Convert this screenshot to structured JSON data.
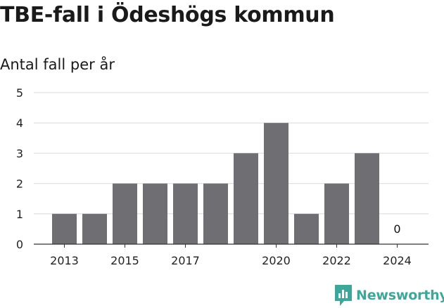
{
  "title": "TBE-fall i Ödeshögs kommun",
  "subtitle": "Antal fall per år",
  "brand": "Newsworthy",
  "colors": {
    "bar": "#6f6e73",
    "grid": "#d9d9d9",
    "axis": "#333333",
    "brand": "#3fa79a"
  },
  "chart_data": {
    "type": "bar",
    "categories": [
      "2013",
      "2014",
      "2015",
      "2016",
      "2017",
      "2018",
      "2019",
      "2020",
      "2021",
      "2022",
      "2023",
      "2024"
    ],
    "values": [
      1,
      1,
      2,
      2,
      2,
      2,
      3,
      4,
      1,
      2,
      3,
      0
    ],
    "x_tick_labels": [
      "2013",
      "2015",
      "2017",
      "2020",
      "2022",
      "2024"
    ],
    "y_ticks": [
      0,
      1,
      2,
      3,
      4,
      5
    ],
    "ylim": [
      0,
      5
    ],
    "data_labels": [
      {
        "category": "2024",
        "text": "0"
      }
    ],
    "grid": true
  }
}
